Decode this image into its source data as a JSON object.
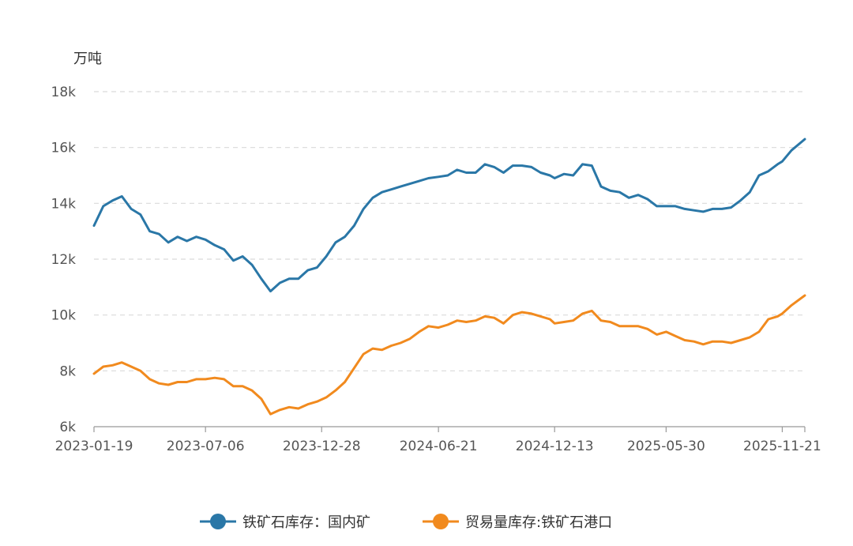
{
  "chart_data": {
    "type": "line",
    "ylabel": "万吨",
    "ylim": [
      6000,
      18000
    ],
    "y_ticks": [
      6000,
      8000,
      10000,
      12000,
      14000,
      16000,
      18000
    ],
    "y_tick_labels": [
      "6k",
      "8k",
      "10k",
      "12k",
      "14k",
      "16k",
      "18k"
    ],
    "x_range": [
      "2023-01-19",
      "2025-12-25"
    ],
    "x_ticks": [
      "2023-01-19",
      "2023-07-06",
      "2023-12-28",
      "2024-06-21",
      "2024-12-13",
      "2025-05-30",
      "2025-11-21"
    ],
    "grid": true,
    "legend_position": "bottom",
    "series": [
      {
        "name": "铁矿石库存：国内矿",
        "color": "#2a77a7",
        "points": [
          [
            "2023-01-19",
            13200
          ],
          [
            "2023-02-02",
            13900
          ],
          [
            "2023-02-16",
            14100
          ],
          [
            "2023-03-02",
            14250
          ],
          [
            "2023-03-16",
            13800
          ],
          [
            "2023-03-30",
            13600
          ],
          [
            "2023-04-13",
            13000
          ],
          [
            "2023-04-27",
            12900
          ],
          [
            "2023-05-11",
            12600
          ],
          [
            "2023-05-25",
            12800
          ],
          [
            "2023-06-08",
            12650
          ],
          [
            "2023-06-22",
            12800
          ],
          [
            "2023-07-06",
            12700
          ],
          [
            "2023-07-20",
            12500
          ],
          [
            "2023-08-03",
            12350
          ],
          [
            "2023-08-17",
            11950
          ],
          [
            "2023-08-31",
            12100
          ],
          [
            "2023-09-14",
            11800
          ],
          [
            "2023-09-28",
            11300
          ],
          [
            "2023-10-12",
            10850
          ],
          [
            "2023-10-26",
            11150
          ],
          [
            "2023-11-09",
            11300
          ],
          [
            "2023-11-23",
            11300
          ],
          [
            "2023-12-07",
            11600
          ],
          [
            "2023-12-21",
            11700
          ],
          [
            "2024-01-04",
            12100
          ],
          [
            "2024-01-18",
            12600
          ],
          [
            "2024-02-01",
            12800
          ],
          [
            "2024-02-15",
            13200
          ],
          [
            "2024-02-29",
            13800
          ],
          [
            "2024-03-14",
            14200
          ],
          [
            "2024-03-28",
            14400
          ],
          [
            "2024-04-11",
            14500
          ],
          [
            "2024-04-25",
            14600
          ],
          [
            "2024-05-09",
            14700
          ],
          [
            "2024-05-23",
            14800
          ],
          [
            "2024-06-06",
            14900
          ],
          [
            "2024-06-21",
            14950
          ],
          [
            "2024-07-05",
            15000
          ],
          [
            "2024-07-19",
            15200
          ],
          [
            "2024-08-02",
            15100
          ],
          [
            "2024-08-16",
            15100
          ],
          [
            "2024-08-30",
            15400
          ],
          [
            "2024-09-13",
            15300
          ],
          [
            "2024-09-27",
            15100
          ],
          [
            "2024-10-11",
            15350
          ],
          [
            "2024-10-25",
            15350
          ],
          [
            "2024-11-08",
            15300
          ],
          [
            "2024-11-22",
            15100
          ],
          [
            "2024-12-06",
            15000
          ],
          [
            "2024-12-13",
            14900
          ],
          [
            "2024-12-27",
            15050
          ],
          [
            "2025-01-10",
            15000
          ],
          [
            "2025-01-24",
            15400
          ],
          [
            "2025-02-07",
            15350
          ],
          [
            "2025-02-21",
            14600
          ],
          [
            "2025-03-07",
            14450
          ],
          [
            "2025-03-21",
            14400
          ],
          [
            "2025-04-04",
            14200
          ],
          [
            "2025-04-18",
            14300
          ],
          [
            "2025-05-02",
            14150
          ],
          [
            "2025-05-16",
            13900
          ],
          [
            "2025-05-30",
            13900
          ],
          [
            "2025-06-13",
            13900
          ],
          [
            "2025-06-27",
            13800
          ],
          [
            "2025-07-11",
            13750
          ],
          [
            "2025-07-25",
            13700
          ],
          [
            "2025-08-08",
            13800
          ],
          [
            "2025-08-22",
            13800
          ],
          [
            "2025-09-05",
            13850
          ],
          [
            "2025-09-19",
            14100
          ],
          [
            "2025-10-03",
            14400
          ],
          [
            "2025-10-17",
            15000
          ],
          [
            "2025-10-31",
            15150
          ],
          [
            "2025-11-14",
            15400
          ],
          [
            "2025-11-21",
            15500
          ],
          [
            "2025-12-05",
            15900
          ],
          [
            "2025-12-25",
            16300
          ]
        ]
      },
      {
        "name": "贸易量库存:铁矿石港口",
        "color": "#f18a1e",
        "points": [
          [
            "2023-01-19",
            7900
          ],
          [
            "2023-02-02",
            8150
          ],
          [
            "2023-02-16",
            8200
          ],
          [
            "2023-03-02",
            8300
          ],
          [
            "2023-03-16",
            8150
          ],
          [
            "2023-03-30",
            8000
          ],
          [
            "2023-04-13",
            7700
          ],
          [
            "2023-04-27",
            7550
          ],
          [
            "2023-05-11",
            7500
          ],
          [
            "2023-05-25",
            7600
          ],
          [
            "2023-06-08",
            7600
          ],
          [
            "2023-06-22",
            7700
          ],
          [
            "2023-07-06",
            7700
          ],
          [
            "2023-07-20",
            7750
          ],
          [
            "2023-08-03",
            7700
          ],
          [
            "2023-08-17",
            7450
          ],
          [
            "2023-08-31",
            7450
          ],
          [
            "2023-09-14",
            7300
          ],
          [
            "2023-09-28",
            7000
          ],
          [
            "2023-10-12",
            6450
          ],
          [
            "2023-10-26",
            6600
          ],
          [
            "2023-11-09",
            6700
          ],
          [
            "2023-11-23",
            6650
          ],
          [
            "2023-12-07",
            6800
          ],
          [
            "2023-12-21",
            6900
          ],
          [
            "2024-01-04",
            7050
          ],
          [
            "2024-01-18",
            7300
          ],
          [
            "2024-02-01",
            7600
          ],
          [
            "2024-02-15",
            8100
          ],
          [
            "2024-02-29",
            8600
          ],
          [
            "2024-03-14",
            8800
          ],
          [
            "2024-03-28",
            8750
          ],
          [
            "2024-04-11",
            8900
          ],
          [
            "2024-04-25",
            9000
          ],
          [
            "2024-05-09",
            9150
          ],
          [
            "2024-05-23",
            9400
          ],
          [
            "2024-06-06",
            9600
          ],
          [
            "2024-06-21",
            9550
          ],
          [
            "2024-07-05",
            9650
          ],
          [
            "2024-07-19",
            9800
          ],
          [
            "2024-08-02",
            9750
          ],
          [
            "2024-08-16",
            9800
          ],
          [
            "2024-08-30",
            9950
          ],
          [
            "2024-09-13",
            9900
          ],
          [
            "2024-09-27",
            9700
          ],
          [
            "2024-10-11",
            10000
          ],
          [
            "2024-10-25",
            10100
          ],
          [
            "2024-11-08",
            10050
          ],
          [
            "2024-11-22",
            9950
          ],
          [
            "2024-12-06",
            9850
          ],
          [
            "2024-12-13",
            9700
          ],
          [
            "2024-12-27",
            9750
          ],
          [
            "2025-01-10",
            9800
          ],
          [
            "2025-01-24",
            10050
          ],
          [
            "2025-02-07",
            10150
          ],
          [
            "2025-02-21",
            9800
          ],
          [
            "2025-03-07",
            9750
          ],
          [
            "2025-03-21",
            9600
          ],
          [
            "2025-04-04",
            9600
          ],
          [
            "2025-04-18",
            9600
          ],
          [
            "2025-05-02",
            9500
          ],
          [
            "2025-05-16",
            9300
          ],
          [
            "2025-05-30",
            9400
          ],
          [
            "2025-06-13",
            9250
          ],
          [
            "2025-06-27",
            9100
          ],
          [
            "2025-07-11",
            9050
          ],
          [
            "2025-07-25",
            8950
          ],
          [
            "2025-08-08",
            9050
          ],
          [
            "2025-08-22",
            9050
          ],
          [
            "2025-09-05",
            9000
          ],
          [
            "2025-09-19",
            9100
          ],
          [
            "2025-10-03",
            9200
          ],
          [
            "2025-10-17",
            9400
          ],
          [
            "2025-10-31",
            9850
          ],
          [
            "2025-11-14",
            9950
          ],
          [
            "2025-11-21",
            10050
          ],
          [
            "2025-12-05",
            10350
          ],
          [
            "2025-12-25",
            10700
          ]
        ]
      }
    ]
  }
}
